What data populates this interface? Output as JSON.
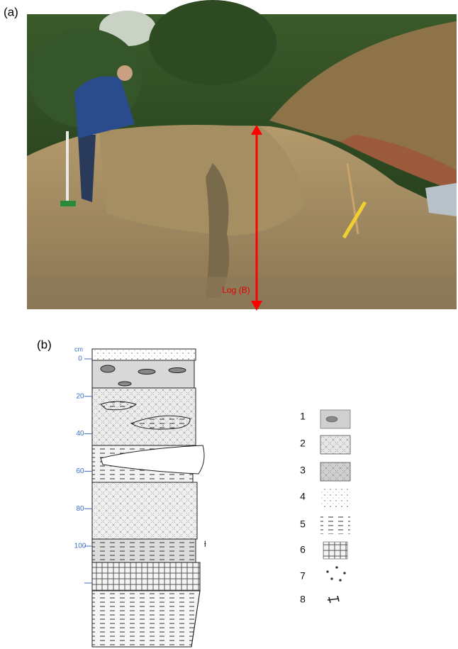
{
  "panel_a": {
    "label": "(a)",
    "annotation": "Log (B)"
  },
  "panel_b": {
    "label": "(b)",
    "depth_unit": "cm",
    "depth_labels": [
      0,
      20,
      40,
      60,
      80,
      100
    ],
    "legend": [
      1,
      2,
      3,
      4,
      5,
      6,
      7,
      8
    ]
  }
}
